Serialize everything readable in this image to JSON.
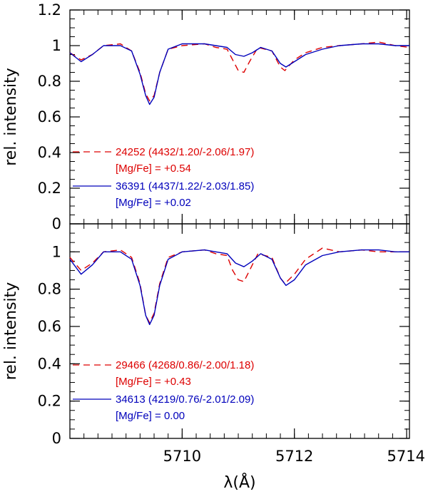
{
  "chart_data": {
    "type": "line",
    "xlabel": "λ(Å)",
    "x_ticks": [
      5710,
      5712,
      5714
    ],
    "xlim": [
      5708.0,
      5714.05
    ],
    "panels": [
      {
        "ylabel": "rel. intensity",
        "ylim": [
          0,
          1.2
        ],
        "y_ticks": [
          {
            "value": 0,
            "label": "0"
          },
          {
            "value": 0.2,
            "label": "0.2"
          },
          {
            "value": 0.4,
            "label": "0.4"
          },
          {
            "value": 0.6,
            "label": "0.6"
          },
          {
            "value": 0.8,
            "label": "0.8"
          },
          {
            "value": 1.0,
            "label": "1"
          },
          {
            "value": 1.2,
            "label": "1.2"
          }
        ],
        "legend": [
          {
            "id": "24252",
            "line1": "24252 (4432/1.20/-2.06/1.97)",
            "line2": "[Mg/Fe] = +0.54",
            "color": "#dd0000",
            "dash": true
          },
          {
            "id": "36391",
            "line1": "36391 (4437/1.22/-2.03/1.85)",
            "line2": "[Mg/Fe] = +0.02",
            "color": "#0000bb",
            "dash": false
          }
        ],
        "series": [
          {
            "color": "#dd0000",
            "dash": true,
            "points": [
              [
                5708.0,
                0.96
              ],
              [
                5708.2,
                0.92
              ],
              [
                5708.4,
                0.95
              ],
              [
                5708.6,
                1.0
              ],
              [
                5708.9,
                1.01
              ],
              [
                5709.1,
                0.97
              ],
              [
                5709.25,
                0.85
              ],
              [
                5709.35,
                0.73
              ],
              [
                5709.42,
                0.69
              ],
              [
                5709.5,
                0.72
              ],
              [
                5709.6,
                0.85
              ],
              [
                5709.75,
                0.98
              ],
              [
                5710.0,
                1.0
              ],
              [
                5710.4,
                1.01
              ],
              [
                5710.6,
                0.99
              ],
              [
                5710.8,
                0.98
              ],
              [
                5710.9,
                0.92
              ],
              [
                5711.0,
                0.86
              ],
              [
                5711.1,
                0.85
              ],
              [
                5711.2,
                0.91
              ],
              [
                5711.35,
                0.99
              ],
              [
                5711.6,
                0.97
              ],
              [
                5711.75,
                0.88
              ],
              [
                5711.83,
                0.86
              ],
              [
                5712.0,
                0.92
              ],
              [
                5712.2,
                0.96
              ],
              [
                5712.5,
                0.99
              ],
              [
                5712.8,
                1.0
              ],
              [
                5713.2,
                1.01
              ],
              [
                5713.5,
                1.02
              ],
              [
                5713.8,
                1.0
              ],
              [
                5714.05,
                0.99
              ]
            ]
          },
          {
            "color": "#0000bb",
            "dash": false,
            "points": [
              [
                5708.0,
                0.96
              ],
              [
                5708.2,
                0.91
              ],
              [
                5708.4,
                0.95
              ],
              [
                5708.6,
                1.0
              ],
              [
                5708.9,
                1.0
              ],
              [
                5709.1,
                0.97
              ],
              [
                5709.25,
                0.84
              ],
              [
                5709.35,
                0.72
              ],
              [
                5709.42,
                0.67
              ],
              [
                5709.5,
                0.71
              ],
              [
                5709.6,
                0.85
              ],
              [
                5709.75,
                0.98
              ],
              [
                5710.0,
                1.01
              ],
              [
                5710.4,
                1.01
              ],
              [
                5710.6,
                1.0
              ],
              [
                5710.8,
                0.99
              ],
              [
                5710.95,
                0.95
              ],
              [
                5711.1,
                0.94
              ],
              [
                5711.25,
                0.96
              ],
              [
                5711.4,
                0.99
              ],
              [
                5711.6,
                0.97
              ],
              [
                5711.75,
                0.9
              ],
              [
                5711.85,
                0.88
              ],
              [
                5712.0,
                0.91
              ],
              [
                5712.2,
                0.95
              ],
              [
                5712.5,
                0.98
              ],
              [
                5712.8,
                1.0
              ],
              [
                5713.2,
                1.01
              ],
              [
                5713.5,
                1.01
              ],
              [
                5713.8,
                1.0
              ],
              [
                5714.05,
                1.0
              ]
            ]
          }
        ]
      },
      {
        "ylabel": "rel. intensity",
        "ylim": [
          0,
          1.15
        ],
        "y_ticks": [
          {
            "value": 0,
            "label": "0"
          },
          {
            "value": 0.2,
            "label": "0.2"
          },
          {
            "value": 0.4,
            "label": "0.4"
          },
          {
            "value": 0.6,
            "label": "0.6"
          },
          {
            "value": 0.8,
            "label": "0.8"
          },
          {
            "value": 1.0,
            "label": "1"
          }
        ],
        "legend": [
          {
            "id": "29466",
            "line1": "29466 (4268/0.86/-2.00/1.18)",
            "line2": "[Mg/Fe] = +0.43",
            "color": "#dd0000",
            "dash": true
          },
          {
            "id": "34613",
            "line1": "34613 (4219/0.76/-2.01/2.09)",
            "line2": "[Mg/Fe] = 0.00",
            "color": "#0000bb",
            "dash": false
          }
        ],
        "series": [
          {
            "color": "#dd0000",
            "dash": true,
            "points": [
              [
                5708.0,
                0.97
              ],
              [
                5708.2,
                0.9
              ],
              [
                5708.4,
                0.94
              ],
              [
                5708.6,
                1.0
              ],
              [
                5708.9,
                1.01
              ],
              [
                5709.1,
                0.97
              ],
              [
                5709.25,
                0.83
              ],
              [
                5709.35,
                0.66
              ],
              [
                5709.42,
                0.62
              ],
              [
                5709.5,
                0.67
              ],
              [
                5709.6,
                0.83
              ],
              [
                5709.75,
                0.97
              ],
              [
                5710.0,
                1.0
              ],
              [
                5710.4,
                1.01
              ],
              [
                5710.6,
                0.99
              ],
              [
                5710.8,
                0.98
              ],
              [
                5710.9,
                0.9
              ],
              [
                5711.0,
                0.85
              ],
              [
                5711.1,
                0.84
              ],
              [
                5711.2,
                0.9
              ],
              [
                5711.35,
                0.99
              ],
              [
                5711.6,
                0.97
              ],
              [
                5711.75,
                0.86
              ],
              [
                5711.83,
                0.83
              ],
              [
                5712.0,
                0.88
              ],
              [
                5712.2,
                0.96
              ],
              [
                5712.5,
                1.02
              ],
              [
                5712.8,
                1.0
              ],
              [
                5713.2,
                1.01
              ],
              [
                5713.5,
                1.0
              ],
              [
                5713.8,
                1.0
              ],
              [
                5714.05,
                1.0
              ]
            ]
          },
          {
            "color": "#0000bb",
            "dash": false,
            "points": [
              [
                5708.0,
                0.96
              ],
              [
                5708.2,
                0.88
              ],
              [
                5708.4,
                0.93
              ],
              [
                5708.6,
                1.0
              ],
              [
                5708.9,
                1.0
              ],
              [
                5709.1,
                0.96
              ],
              [
                5709.25,
                0.82
              ],
              [
                5709.35,
                0.66
              ],
              [
                5709.42,
                0.61
              ],
              [
                5709.5,
                0.66
              ],
              [
                5709.6,
                0.82
              ],
              [
                5709.75,
                0.96
              ],
              [
                5710.0,
                1.0
              ],
              [
                5710.4,
                1.01
              ],
              [
                5710.6,
                1.0
              ],
              [
                5710.8,
                0.99
              ],
              [
                5710.95,
                0.94
              ],
              [
                5711.1,
                0.92
              ],
              [
                5711.25,
                0.95
              ],
              [
                5711.4,
                0.99
              ],
              [
                5711.6,
                0.96
              ],
              [
                5711.75,
                0.86
              ],
              [
                5711.85,
                0.82
              ],
              [
                5712.0,
                0.85
              ],
              [
                5712.2,
                0.93
              ],
              [
                5712.5,
                0.98
              ],
              [
                5712.8,
                1.0
              ],
              [
                5713.2,
                1.01
              ],
              [
                5713.5,
                1.01
              ],
              [
                5713.8,
                1.0
              ],
              [
                5714.05,
                1.0
              ]
            ]
          }
        ]
      }
    ]
  }
}
